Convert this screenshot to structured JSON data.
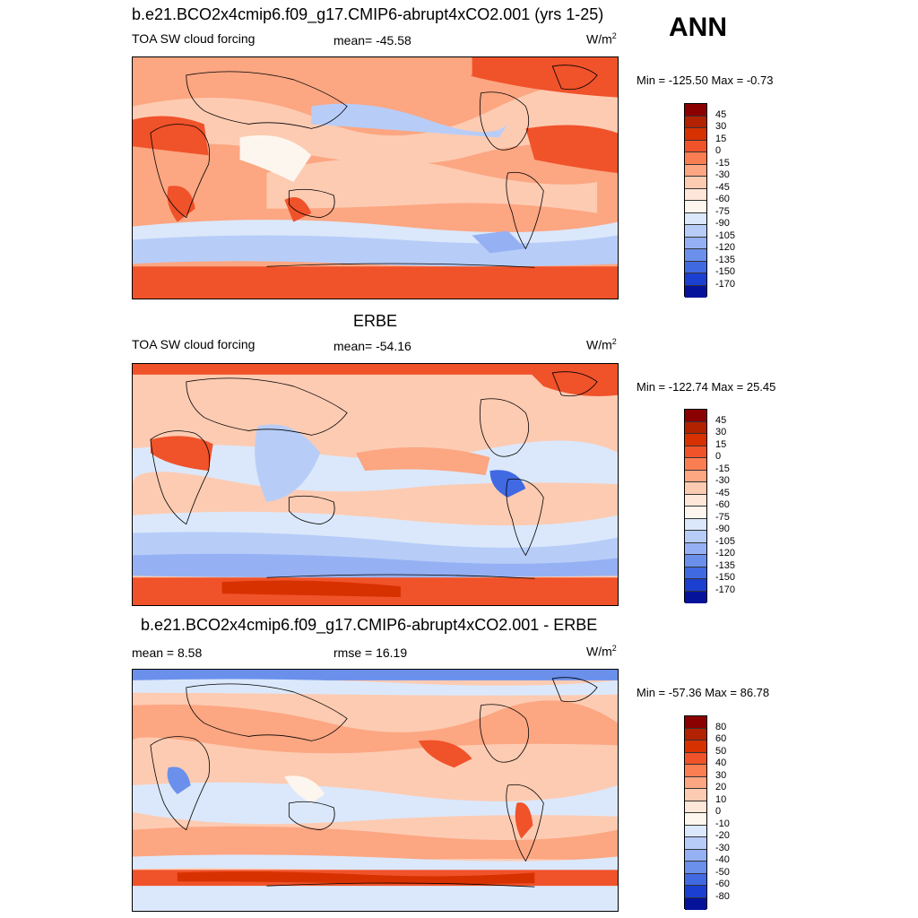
{
  "season": "ANN",
  "panels": [
    {
      "title": "b.e21.BCO2x4cmip6.f09_g17.CMIP6-abrupt4xCO2.001 (yrs 1-25)",
      "left_label": "TOA SW cloud forcing",
      "center_label": "mean= -45.58",
      "units_base": "W/m",
      "units_sup": "2",
      "minmax": "Min = -125.50 Max =  -0.73",
      "colorbar_levels": [
        "45",
        "30",
        "15",
        "0",
        "-15",
        "-30",
        "-45",
        "-60",
        "-75",
        "-90",
        "-105",
        "-120",
        "-135",
        "-150",
        "-170"
      ],
      "colorbar_colors": [
        "#8b0000",
        "#b22100",
        "#d83100",
        "#f0522a",
        "#fa7e52",
        "#fca682",
        "#fdcbb2",
        "#fee7d9",
        "#fdf6ee",
        "#dbe8fb",
        "#b7cdf8",
        "#95b1f3",
        "#6a90ec",
        "#4069e2",
        "#1b3fd1",
        "#05139a"
      ],
      "field_mean": -45.58,
      "field_min": -125.5,
      "field_max": -0.73
    },
    {
      "title": "ERBE",
      "left_label": "TOA SW cloud forcing",
      "center_label": "mean= -54.16",
      "units_base": "W/m",
      "units_sup": "2",
      "minmax": "Min = -122.74 Max =  25.45",
      "colorbar_levels": [
        "45",
        "30",
        "15",
        "0",
        "-15",
        "-30",
        "-45",
        "-60",
        "-75",
        "-90",
        "-105",
        "-120",
        "-135",
        "-150",
        "-170"
      ],
      "colorbar_colors": [
        "#8b0000",
        "#b22100",
        "#d83100",
        "#f0522a",
        "#fa7e52",
        "#fca682",
        "#fdcbb2",
        "#fee7d9",
        "#fdf6ee",
        "#dbe8fb",
        "#b7cdf8",
        "#95b1f3",
        "#6a90ec",
        "#4069e2",
        "#1b3fd1",
        "#05139a"
      ],
      "field_mean": -54.16,
      "field_min": -122.74,
      "field_max": 25.45
    },
    {
      "title": "b.e21.BCO2x4cmip6.f09_g17.CMIP6-abrupt4xCO2.001 - ERBE",
      "left_label": "mean =   8.58",
      "center_label": "rmse =  16.19",
      "units_base": "W/m",
      "units_sup": "2",
      "minmax": "Min = -57.36 Max =  86.78",
      "colorbar_levels": [
        "80",
        "60",
        "50",
        "40",
        "30",
        "20",
        "10",
        "0",
        "-10",
        "-20",
        "-30",
        "-40",
        "-50",
        "-60",
        "-80"
      ],
      "colorbar_colors": [
        "#8b0000",
        "#b22100",
        "#d83100",
        "#f0522a",
        "#fa7e52",
        "#fca682",
        "#fdcbb2",
        "#fee7d9",
        "#fdf6ee",
        "#dbe8fb",
        "#b7cdf8",
        "#95b1f3",
        "#6a90ec",
        "#4069e2",
        "#1b3fd1",
        "#05139a"
      ],
      "field_mean": 8.58,
      "field_rmse": 16.19,
      "field_min": -57.36,
      "field_max": 86.78
    }
  ]
}
